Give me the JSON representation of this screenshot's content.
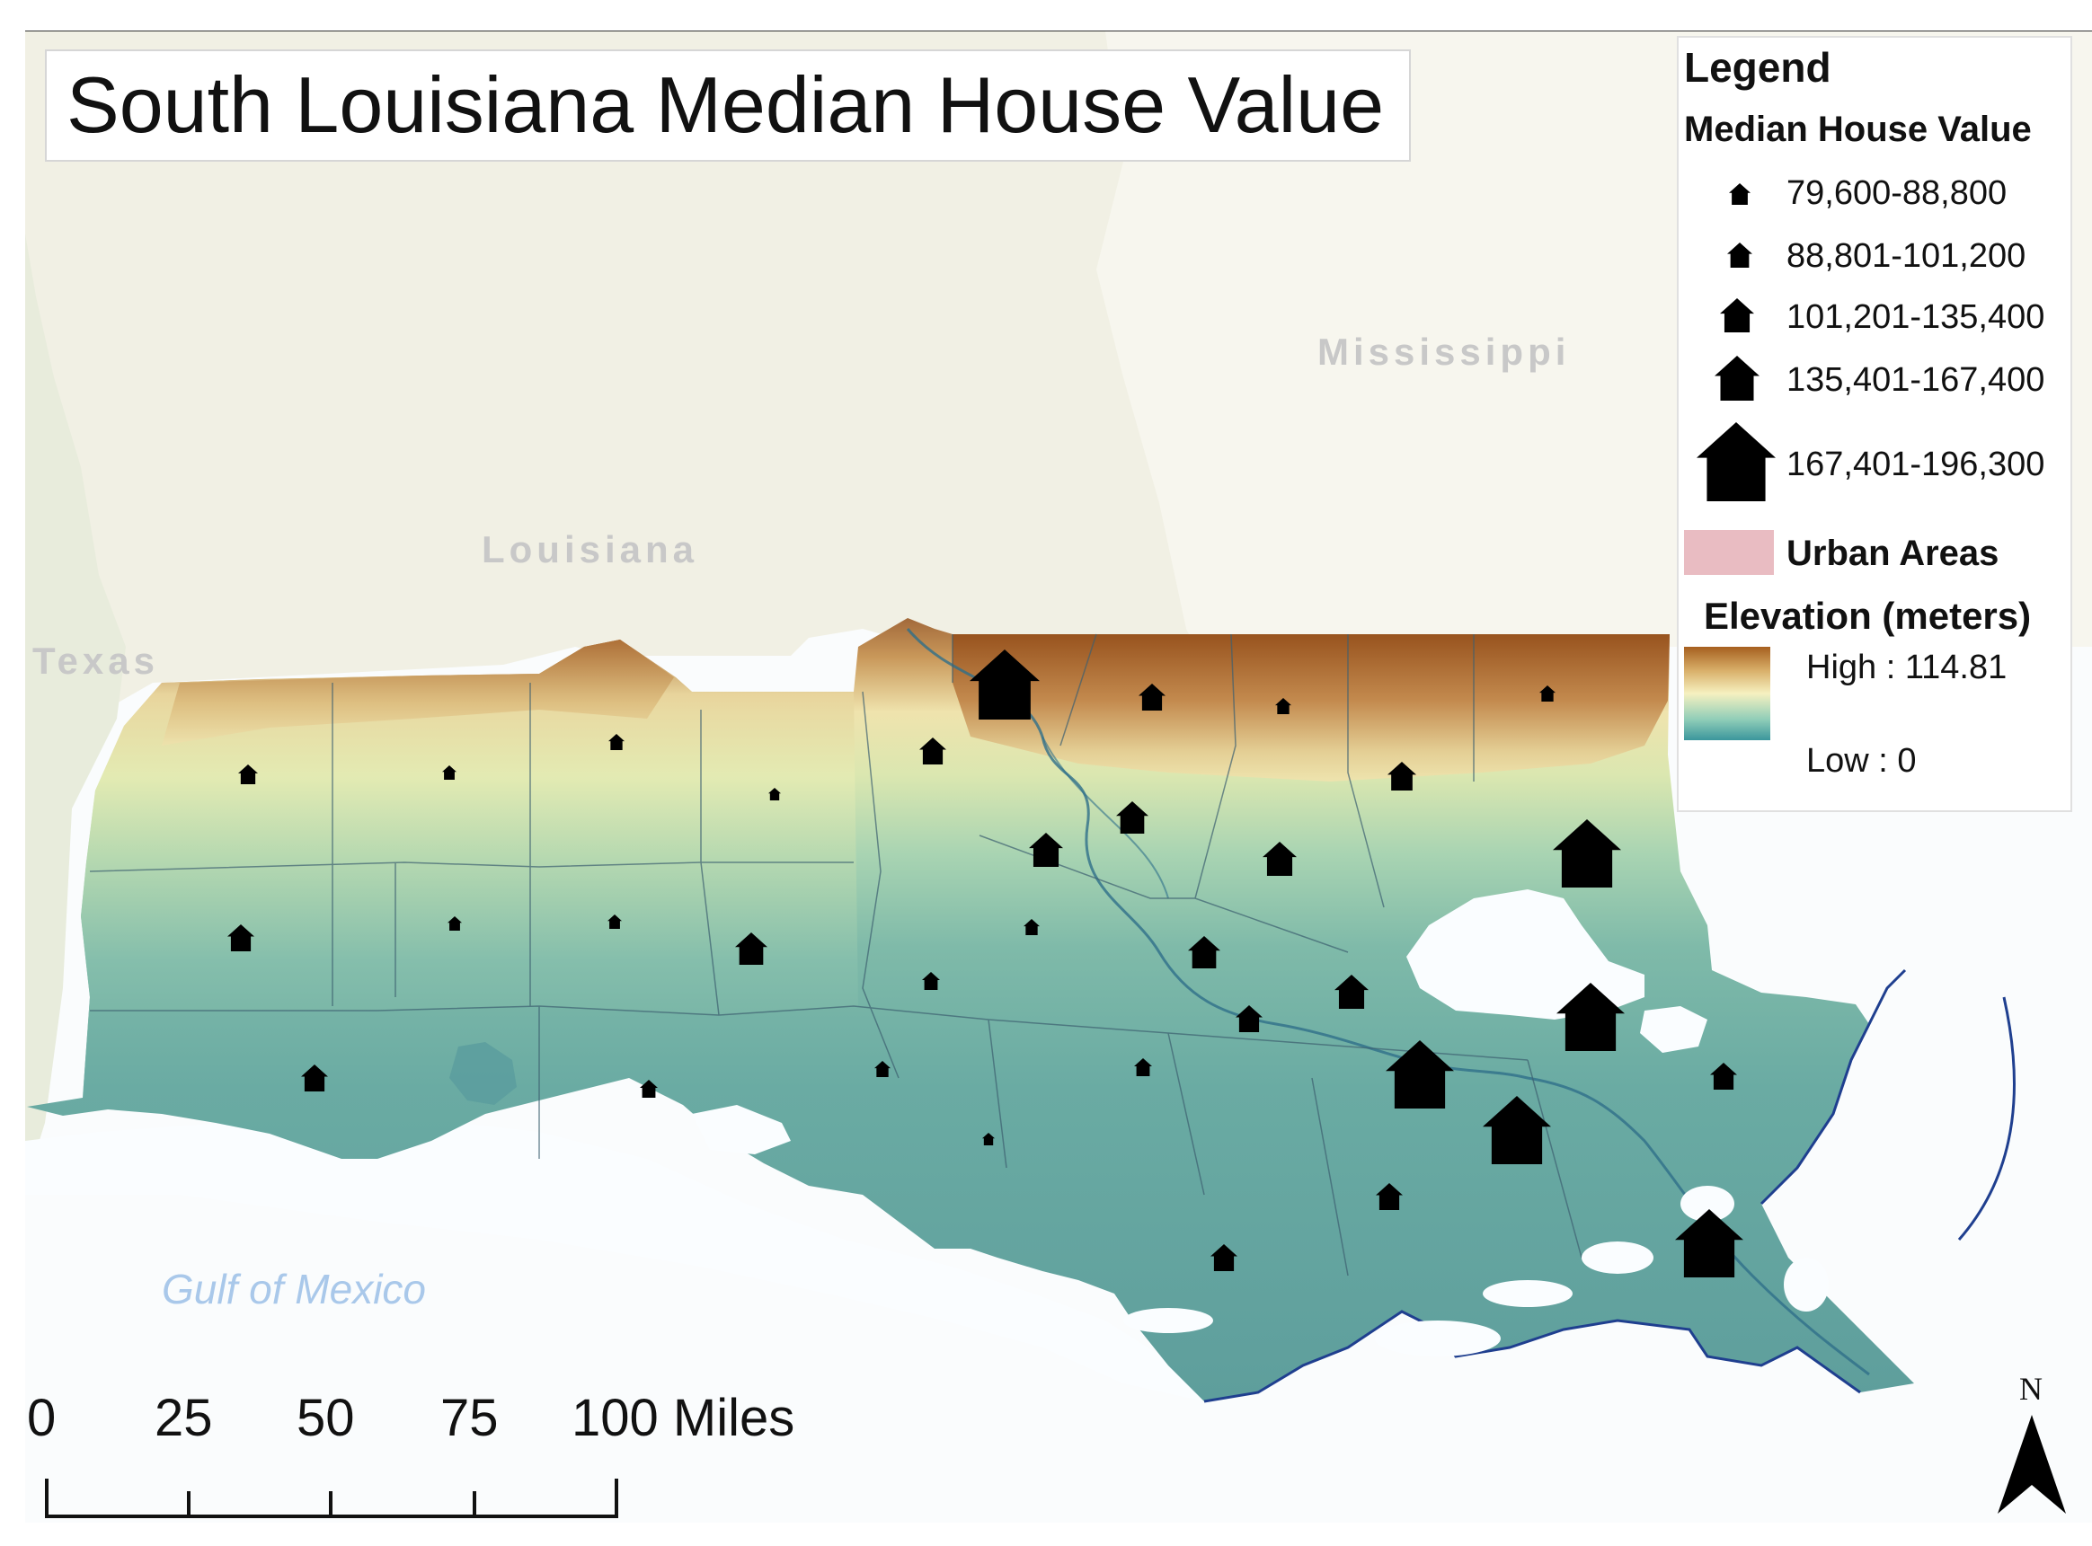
{
  "title": "South Louisiana Median House Value",
  "labels": {
    "texas": "Texas",
    "louisiana": "Louisiana",
    "mississippi": "Mississippi",
    "gulf": "Gulf of Mexico"
  },
  "legend": {
    "heading": "Legend",
    "house_value_title": "Median House Value",
    "classes": [
      {
        "range": "79,600-88,800",
        "icon": "house-icon"
      },
      {
        "range": "88,801-101,200",
        "icon": "house-icon"
      },
      {
        "range": "101,201-135,400",
        "icon": "house-icon"
      },
      {
        "range": "135,401-167,400",
        "icon": "house-icon"
      },
      {
        "range": "167,401-196,300",
        "icon": "house-icon"
      }
    ],
    "urban_label": "Urban Areas",
    "urban_color": "#e9bcc2",
    "elevation_title": "Elevation (meters)",
    "elevation_high": "High : 114.81",
    "elevation_low": "Low : 0",
    "elevation_colors": [
      "#a65f1f",
      "#d8ae68",
      "#f6f1c0",
      "#8fcdb8",
      "#3b969c"
    ]
  },
  "scale": {
    "ticks": [
      "0",
      "25",
      "50",
      "75",
      "100 Miles"
    ]
  },
  "north_label": "N",
  "colors": {
    "land_base": "#f2f1e6",
    "water": "#fafdff",
    "lowland": "#6fb2a8",
    "coast_outline": "#1f3f8f",
    "marker": "#000000"
  }
}
